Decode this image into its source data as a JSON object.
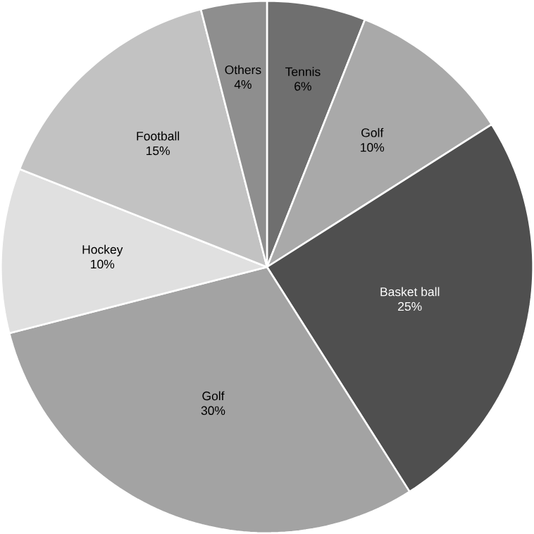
{
  "chart_data": {
    "type": "pie",
    "categories": [
      "Tennis",
      "Golf",
      "Basket ball",
      "Golf",
      "Hockey",
      "Football",
      "Others"
    ],
    "values": [
      6,
      10,
      25,
      30,
      10,
      15,
      4
    ],
    "value_labels": [
      "6%",
      "10%",
      "25%",
      "30%",
      "10%",
      "15%",
      "4%"
    ],
    "colors": [
      "#6f6f6f",
      "#a9a9a9",
      "#4f4f4f",
      "#a3a3a3",
      "#e0e0e0",
      "#c2c2c2",
      "#8e8e8e"
    ]
  }
}
